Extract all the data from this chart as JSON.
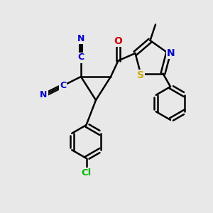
{
  "background_color": "#e8e8e8",
  "bond_color": "#000000",
  "bond_width": 1.8,
  "atom_colors": {
    "C_label": "#0000cc",
    "N": "#0000cc",
    "O": "#cc0000",
    "S": "#ccaa00",
    "Cl": "#00bb00",
    "N_ring": "#0000cc"
  },
  "figsize": [
    3.0,
    3.0
  ],
  "dpi": 100
}
